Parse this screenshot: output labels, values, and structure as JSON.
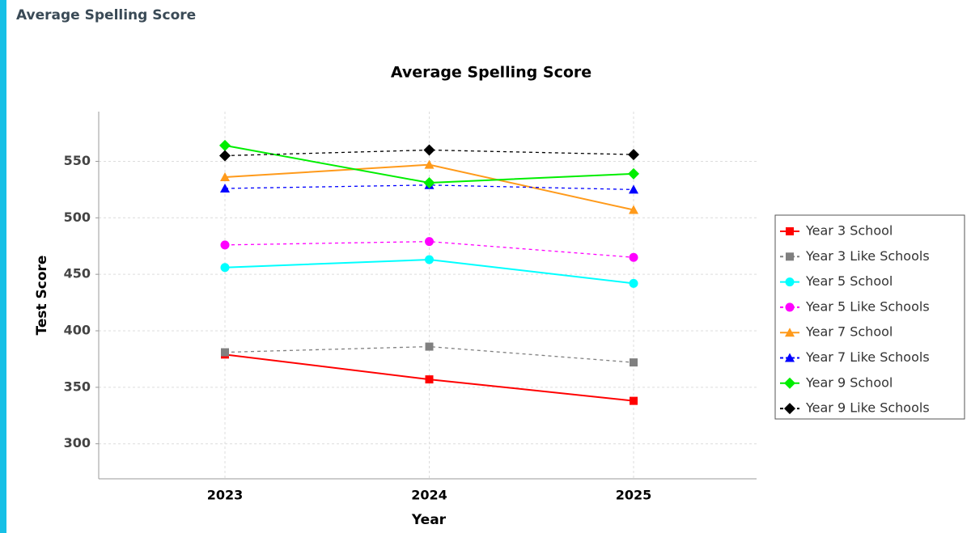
{
  "header": {
    "title": "Average Spelling Score"
  },
  "chart_data": {
    "type": "line",
    "title": "Average Spelling Score",
    "x_label": "Year",
    "y_label": "Test Score",
    "categories": [
      "2023",
      "2024",
      "2025"
    ],
    "ylim": [
      269,
      594
    ],
    "yticks": [
      300,
      350,
      400,
      450,
      500,
      550
    ],
    "grid": true,
    "legend": "right",
    "series": [
      {
        "name": "Year 3 School",
        "color": "#ff0000",
        "marker": "square",
        "dashed": false,
        "values": [
          379,
          357,
          338
        ]
      },
      {
        "name": "Year 3 Like Schools",
        "color": "#808080",
        "marker": "square",
        "dashed": true,
        "values": [
          381,
          386,
          372
        ]
      },
      {
        "name": "Year 5 School",
        "color": "#00ffff",
        "marker": "circle",
        "dashed": false,
        "values": [
          456,
          463,
          442
        ]
      },
      {
        "name": "Year 5 Like Schools",
        "color": "#ff00ff",
        "marker": "circle",
        "dashed": true,
        "values": [
          476,
          479,
          465
        ]
      },
      {
        "name": "Year 7 School",
        "color": "#ff9a1a",
        "marker": "triangle",
        "dashed": false,
        "values": [
          536,
          547,
          507
        ]
      },
      {
        "name": "Year 7 Like Schools",
        "color": "#0000ff",
        "marker": "triangle",
        "dashed": true,
        "values": [
          526,
          529,
          525
        ]
      },
      {
        "name": "Year 9 School",
        "color": "#00ee00",
        "marker": "diamond",
        "dashed": false,
        "values": [
          564,
          531,
          539
        ]
      },
      {
        "name": "Year 9 Like Schools",
        "color": "#000000",
        "marker": "diamond",
        "dashed": true,
        "values": [
          555,
          560,
          556
        ]
      }
    ]
  }
}
